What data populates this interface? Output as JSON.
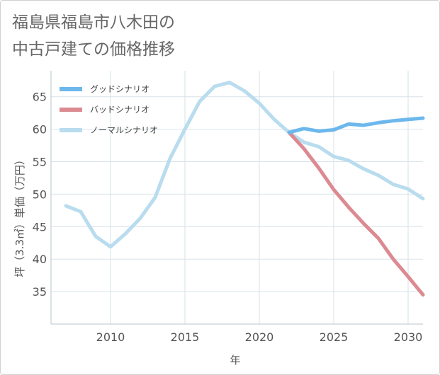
{
  "title": {
    "line1": "福島県福島市八木田の",
    "line2": "中古戸建ての価格推移"
  },
  "chart_data": {
    "type": "line",
    "xlabel": "年",
    "ylabel": "坪（3.3㎡）単価（万円）",
    "xlim": [
      2006,
      2031
    ],
    "ylim": [
      30,
      69
    ],
    "x_ticks": [
      2010,
      2015,
      2020,
      2025,
      2030
    ],
    "y_ticks": [
      35,
      40,
      45,
      50,
      55,
      60,
      65
    ],
    "grid": true,
    "legend_position": "top-left",
    "series": [
      {
        "name": "グッドシナリオ",
        "color": "#6cb8ec",
        "x": [
          2022,
          2023,
          2024,
          2025,
          2026,
          2027,
          2028,
          2029,
          2030,
          2031
        ],
        "y": [
          59.5,
          60.1,
          59.7,
          59.9,
          60.8,
          60.6,
          61.0,
          61.3,
          61.5,
          61.7
        ]
      },
      {
        "name": "バッドシナリオ",
        "color": "#dc8a91",
        "x": [
          2022,
          2023,
          2024,
          2025,
          2026,
          2027,
          2028,
          2029,
          2030,
          2031
        ],
        "y": [
          59.5,
          57.0,
          54.0,
          50.7,
          48.0,
          45.5,
          43.2,
          40.0,
          37.3,
          34.5
        ]
      },
      {
        "name": "ノーマルシナリオ",
        "color": "#b9dcee",
        "x": [
          2007,
          2008,
          2009,
          2010,
          2011,
          2012,
          2013,
          2014,
          2015,
          2016,
          2017,
          2018,
          2019,
          2020,
          2021,
          2022,
          2023,
          2024,
          2025,
          2026,
          2027,
          2028,
          2029,
          2030,
          2031
        ],
        "y": [
          48.2,
          47.3,
          43.5,
          41.9,
          43.9,
          46.3,
          49.5,
          55.5,
          60.0,
          64.3,
          66.6,
          67.2,
          65.9,
          64.0,
          61.5,
          59.5,
          58.0,
          57.3,
          55.8,
          55.2,
          53.9,
          52.9,
          51.5,
          50.8,
          49.3
        ]
      }
    ]
  }
}
